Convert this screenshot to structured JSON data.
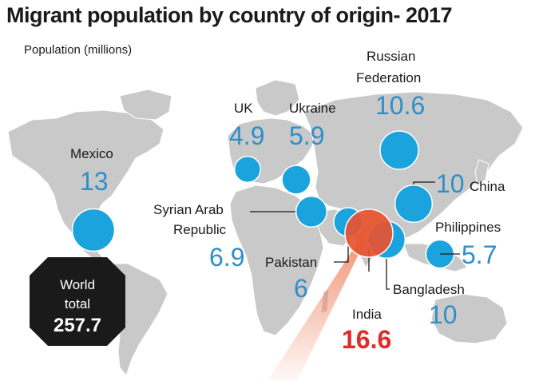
{
  "title": "Migrant population by country of origin- 2017",
  "subtitle": "Population (millions)",
  "chart_data": {
    "type": "bubble-map",
    "title": "Migrant population by country of origin- 2017",
    "ylabel": "Population (millions)",
    "series": [
      {
        "name": "Mexico",
        "label_lines": [
          "Mexico"
        ],
        "value": 13,
        "value_text": "13"
      },
      {
        "name": "UK",
        "label_lines": [
          "UK"
        ],
        "value": 4.9,
        "value_text": "4.9"
      },
      {
        "name": "Ukraine",
        "label_lines": [
          "Ukraine"
        ],
        "value": 5.9,
        "value_text": "5.9"
      },
      {
        "name": "Russian Federation",
        "label_lines": [
          "Russian",
          "Federation"
        ],
        "value": 10.6,
        "value_text": "10.6"
      },
      {
        "name": "China",
        "label_lines": [
          "China"
        ],
        "value": 10,
        "value_text": "10"
      },
      {
        "name": "Syrian Arab Republic",
        "label_lines": [
          "Syrian Arab",
          "Republic"
        ],
        "value": 6.9,
        "value_text": "6.9"
      },
      {
        "name": "Philippines",
        "label_lines": [
          "Philippines"
        ],
        "value": 5.7,
        "value_text": "5.7"
      },
      {
        "name": "Pakistan",
        "label_lines": [
          "Pakistan"
        ],
        "value": 6,
        "value_text": "6"
      },
      {
        "name": "Bangladesh",
        "label_lines": [
          "Bangladesh"
        ],
        "value": 10,
        "value_text": "10"
      },
      {
        "name": "India",
        "label_lines": [
          "India"
        ],
        "value": 16.6,
        "value_text": "16.6",
        "highlight": true
      }
    ],
    "world_total": {
      "lines": [
        "World",
        "total"
      ],
      "value": 257.7,
      "value_text": "257.7"
    }
  },
  "colors": {
    "bubble": "#1aa3dc",
    "bubble_stroke": "#ffffff",
    "india_bubble": "#e8532f",
    "value_text": "#2e8fc8",
    "india_text": "#e02b2b",
    "land": "#c9c9c9",
    "badge": "#1a1a1a"
  }
}
